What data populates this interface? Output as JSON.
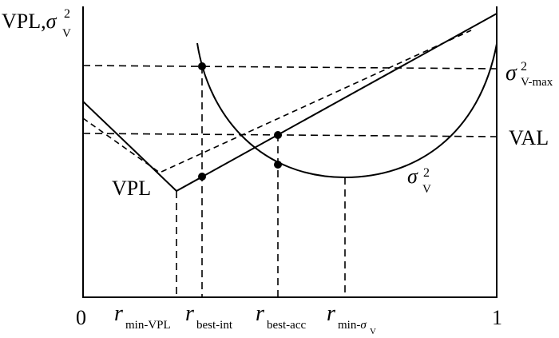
{
  "labels": {
    "y_axis_main": "VPL,",
    "y_axis_sigma": "σ",
    "y_axis_sup": "2",
    "y_axis_sub": "V",
    "sigma_max_sigma": "σ",
    "sigma_max_sup": "2",
    "sigma_max_sub": "V-max",
    "val": "VAL",
    "vpl": "VPL",
    "curve_sigma": "σ",
    "curve_sup": "2",
    "curve_sub": "V",
    "x_zero": "0",
    "x_one": "1",
    "r": "r",
    "r_min_vpl_sub": "min-VPL",
    "r_best_int_sub": "best-int",
    "r_best_acc_sub": "best-acc",
    "r_min_sigma_sub_prefix": "min-",
    "r_min_sigma_sub_sigma": "σ",
    "r_min_sigma_sub_v": "V"
  },
  "colors": {
    "line": "#000000",
    "background": "#ffffff"
  }
}
